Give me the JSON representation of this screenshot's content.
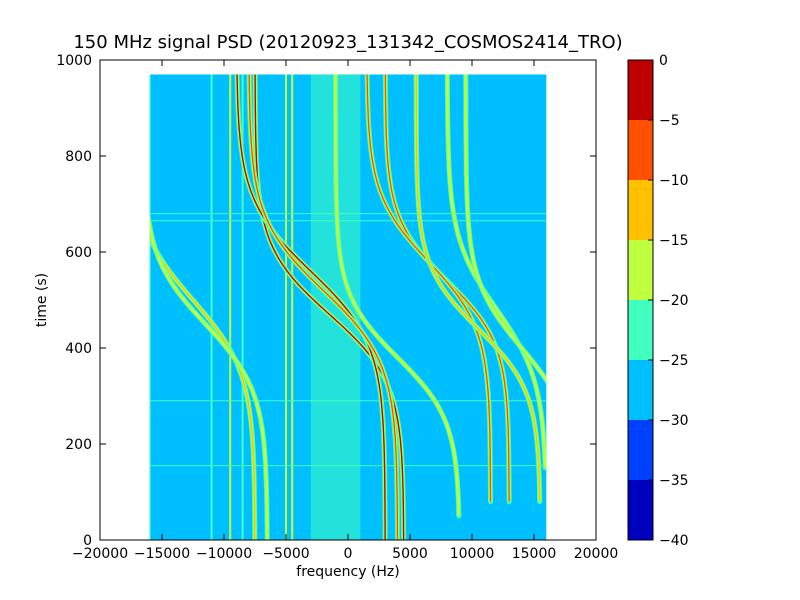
{
  "chart_data": {
    "type": "heatmap",
    "title": "150 MHz signal PSD (20120923_131342_COSMOS2414_TRO)",
    "xlabel": "frequency (Hz)",
    "ylabel": "time (s)",
    "xlim": [
      -20000,
      20000
    ],
    "ylim": [
      0,
      1000
    ],
    "x_ticks": [
      -20000,
      -15000,
      -10000,
      -5000,
      0,
      5000,
      10000,
      15000,
      20000
    ],
    "y_ticks": [
      0,
      200,
      400,
      600,
      800,
      1000
    ],
    "data_extent": {
      "x": [
        -16000,
        16000
      ],
      "y": [
        0,
        970
      ]
    },
    "background_level": -27.5,
    "noise_band": {
      "x_center": -1000,
      "width": 4000,
      "level": -22.5
    },
    "vertical_lines": [
      {
        "x": -16000,
        "level": -22.5
      },
      {
        "x": -11000,
        "level": -22.5
      },
      {
        "x": -9500,
        "level": -17.5
      },
      {
        "x": -8500,
        "level": -22.5
      },
      {
        "x": -5000,
        "level": -17.5
      },
      {
        "x": -4500,
        "level": -17.5
      }
    ],
    "horizontal_lines": [
      {
        "y": 155,
        "level": -22.5
      },
      {
        "y": 290,
        "level": -22.5
      },
      {
        "y": 665,
        "level": -22.5
      },
      {
        "y": 680,
        "level": -22.5
      }
    ],
    "doppler_traces": [
      {
        "offset_hz": -1500,
        "amplitude_hz": 6000,
        "t_center": 470,
        "t_scale": 140,
        "t_start": 0,
        "t_end": 970,
        "peak_level": -2.5
      },
      {
        "offset_hz": -3000,
        "amplitude_hz": 6000,
        "t_center": 560,
        "t_scale": 150,
        "t_start": 0,
        "t_end": 970,
        "peak_level": -2.5
      },
      {
        "offset_hz": -2000,
        "amplitude_hz": 6000,
        "t_center": 520,
        "t_scale": 150,
        "t_start": 0,
        "t_end": 970,
        "peak_level": -7.5
      },
      {
        "offset_hz": 8000,
        "amplitude_hz": 5000,
        "t_center": 540,
        "t_scale": 130,
        "t_start": 80,
        "t_end": 970,
        "peak_level": -7.5
      },
      {
        "offset_hz": 6500,
        "amplitude_hz": 5000,
        "t_center": 580,
        "t_scale": 140,
        "t_start": 80,
        "t_end": 970,
        "peak_level": -7.5
      },
      {
        "offset_hz": 10500,
        "amplitude_hz": 5000,
        "t_center": 440,
        "t_scale": 130,
        "t_start": 80,
        "t_end": 970,
        "peak_level": -12.5
      },
      {
        "offset_hz": -12500,
        "amplitude_hz": 5000,
        "t_center": 500,
        "t_scale": 150,
        "t_start": 0,
        "t_end": 970,
        "peak_level": -12.5
      },
      {
        "offset_hz": -11500,
        "amplitude_hz": 5000,
        "t_center": 450,
        "t_scale": 140,
        "t_start": 0,
        "t_end": 970,
        "peak_level": -17.5
      },
      {
        "offset_hz": 12000,
        "amplitude_hz": 4000,
        "t_center": 480,
        "t_scale": 150,
        "t_start": 150,
        "t_end": 970,
        "peak_level": -17.5
      },
      {
        "offset_hz": 14000,
        "amplitude_hz": 4500,
        "t_center": 400,
        "t_scale": 140,
        "t_start": 150,
        "t_end": 970,
        "peak_level": -17.5
      },
      {
        "offset_hz": 4000,
        "amplitude_hz": 5000,
        "t_center": 380,
        "t_scale": 130,
        "t_start": 50,
        "t_end": 970,
        "peak_level": -17.5
      }
    ],
    "colorbar": {
      "levels": [
        -40,
        -35,
        -30,
        -25,
        -20,
        -15,
        -10,
        -5,
        0
      ],
      "colors": [
        "#0000bf",
        "#0040ff",
        "#00bfff",
        "#40ffbf",
        "#bfff40",
        "#ffc000",
        "#ff5000",
        "#bf0000"
      ],
      "tick_labels": [
        "−40",
        "−35",
        "−30",
        "−25",
        "−20",
        "−15",
        "−10",
        "−5",
        "0"
      ]
    },
    "legend": "none",
    "grid": false
  }
}
